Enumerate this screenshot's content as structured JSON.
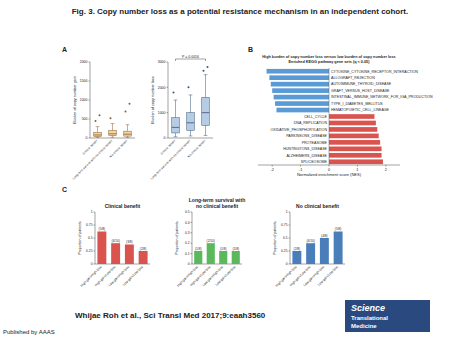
{
  "page": {
    "title": "Fig. 3. Copy number loss as a potential resistance mechanism in an independent cohort.",
    "panel_labels": [
      "A",
      "B",
      "C"
    ],
    "citation": "Whijae Roh et al., Sci Transl Med 2017;9:eaah3560",
    "journal": [
      "Science",
      "Translational",
      "Medicine"
    ],
    "publisher": "Published by AAAS"
  },
  "chart_data": [
    {
      "type": "box",
      "y_label": "Burden of copy number gain",
      "categories": [
        "Clinical benefit",
        "Long-term survival with no clinical benefit",
        "No clinical benefit"
      ],
      "color": "#e69f3c",
      "ylim": [
        0,
        2000
      ],
      "yticks": [
        0,
        500,
        1000,
        1500,
        2000
      ],
      "boxes": [
        {
          "min": 10,
          "q1": 40,
          "median": 80,
          "q3": 150,
          "max": 300,
          "outliers": [
            450,
            600
          ]
        },
        {
          "min": 20,
          "q1": 60,
          "median": 110,
          "q3": 200,
          "max": 380,
          "outliers": [
            520
          ]
        },
        {
          "min": 15,
          "q1": 50,
          "median": 100,
          "q3": 180,
          "max": 350,
          "outliers": [
            700,
            900
          ]
        }
      ]
    },
    {
      "type": "box",
      "y_label": "Burden of copy number loss",
      "categories": [
        "Clinical benefit",
        "Long-term survival with no clinical benefit",
        "No clinical benefit"
      ],
      "color": "#5b8fc4",
      "ylim": [
        0,
        3000
      ],
      "yticks": [
        0,
        1000,
        2000,
        3000
      ],
      "boxes": [
        {
          "min": 50,
          "q1": 200,
          "median": 420,
          "q3": 800,
          "max": 1500,
          "outliers": [
            1800
          ]
        },
        {
          "min": 80,
          "q1": 300,
          "median": 600,
          "q3": 1000,
          "max": 1700,
          "outliers": [
            2000
          ]
        },
        {
          "min": 100,
          "q1": 500,
          "median": 1000,
          "q3": 1600,
          "max": 2500,
          "outliers": [
            2650,
            2800
          ]
        }
      ],
      "annotations": [
        {
          "text": "P = 0.0016",
          "from": 0,
          "to": 2
        }
      ]
    },
    {
      "type": "bar",
      "orientation": "horizontal",
      "title": [
        "High burden of copy number loss versus low burden of copy number loss",
        "Enriched KEGG pathway gene sets (q < 0.05)"
      ],
      "x_label": "Normalized enrichment score (NES)",
      "categories": [
        "CYTOKINE_CYTOKINE_RECEPTOR_INTERACTION",
        "ALLOGRAFT_REJECTION",
        "AUTOIMMUNE_THYROID_DISEASE",
        "GRAFT_VERSUS_HOST_DISEASE",
        "INTESTINAL_IMMUNE_NETWORK_FOR_IGA_PRODUCTION",
        "TYPE_I_DIABETES_MELLITUS",
        "HEMATOPOIETIC_CELL_LINEAGE",
        "CELL_CYCLE",
        "DNA_REPLICATION",
        "OXIDATIVE_PHOSPHORYLATION",
        "PARKINSONS_DISEASE",
        "PROTEASOME",
        "HUNTINGTONS_DISEASE",
        "ALZHEIMERS_DISEASE",
        "SPLICEOSOME"
      ],
      "values": [
        -2.2,
        -2.1,
        -2.05,
        -2.0,
        -1.95,
        -1.9,
        -1.85,
        1.6,
        1.65,
        1.7,
        1.75,
        1.8,
        1.85,
        1.85,
        1.9
      ],
      "colors": [
        "#5b9bd5",
        "#5b9bd5",
        "#5b9bd5",
        "#5b9bd5",
        "#5b9bd5",
        "#5b9bd5",
        "#5b9bd5",
        "#d9534f",
        "#d9534f",
        "#d9534f",
        "#d9534f",
        "#d9534f",
        "#d9534f",
        "#d9534f",
        "#d9534f"
      ],
      "xlim": [
        -2.5,
        2.5
      ],
      "xticks": [
        -2,
        -1,
        0,
        1,
        2
      ]
    },
    {
      "type": "bar",
      "title": [
        "Clinical benefit"
      ],
      "y_label": "Proportion of patients",
      "categories": [
        "High gain/High loss",
        "High gain/Low loss",
        "Low gain/High loss",
        "Low gain/Low loss"
      ],
      "values": [
        0.625,
        0.4,
        0.375,
        0.25
      ],
      "value_labels": [
        "(5/8)",
        "(4/10)",
        "(3/8)",
        "(2/8)"
      ],
      "data_labels": true,
      "color": "#d9534f",
      "ylim": [
        0,
        1
      ],
      "yticks": [
        0,
        0.25,
        0.5,
        0.75,
        1
      ]
    },
    {
      "type": "bar",
      "title": [
        "Long-term survival with",
        "no clinical benefit"
      ],
      "y_label": "Proportion of patients",
      "categories": [
        "High gain/High loss",
        "High gain/Low loss",
        "Low gain/High loss",
        "Low gain/Low loss"
      ],
      "values": [
        0.125,
        0.2,
        0.125,
        0.125
      ],
      "value_labels": [
        "(1/8)",
        "(2/10)",
        "(1/8)",
        "(1/8)"
      ],
      "data_labels": true,
      "color": "#5cb85c",
      "ylim": [
        0,
        0.5
      ],
      "yticks": [
        0,
        0.1,
        0.2,
        0.3,
        0.4,
        0.5
      ]
    },
    {
      "type": "bar",
      "title": [
        "No clinical benefit"
      ],
      "y_label": "Proportion of patients",
      "categories": [
        "High gain/High loss",
        "High gain/Low loss",
        "Low gain/High loss",
        "Low gain/Low loss"
      ],
      "values": [
        0.25,
        0.4,
        0.5,
        0.625
      ],
      "value_labels": [
        "(2/8)",
        "(4/10)",
        "(4/8)",
        "(5/8)"
      ],
      "data_labels": true,
      "color": "#4a7ebb",
      "ylim": [
        0,
        1
      ],
      "yticks": [
        0,
        0.25,
        0.5,
        0.75,
        1
      ]
    }
  ]
}
